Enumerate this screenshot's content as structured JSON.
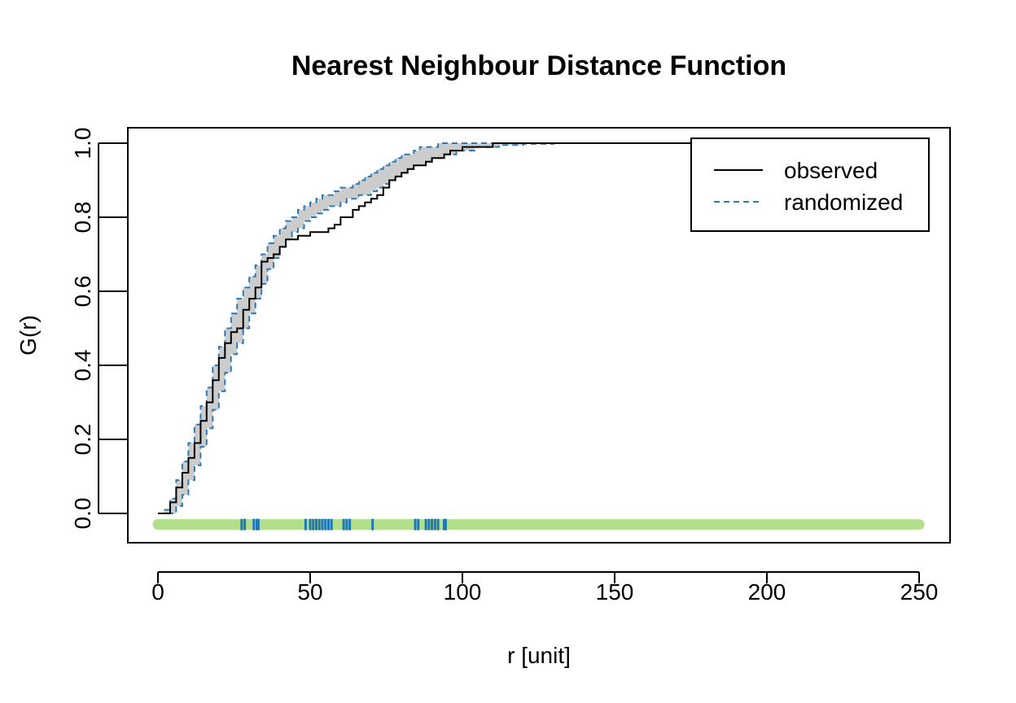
{
  "chart_data": {
    "type": "line",
    "title": "Nearest Neighbour Distance Function",
    "xlabel": "r [unit]",
    "ylabel": "G(r)",
    "xlim": [
      0,
      250
    ],
    "ylim": [
      -0.03,
      1.0
    ],
    "x_ticks": [
      "0",
      "50",
      "100",
      "150",
      "200",
      "250"
    ],
    "y_ticks": [
      "0.0",
      "0.2",
      "0.4",
      "0.6",
      "0.8",
      "1.0"
    ],
    "grid": false,
    "legend": {
      "position": "top-right",
      "entries": [
        {
          "label": "observed",
          "style": "solid",
          "color": "#000000"
        },
        {
          "label": "randomized",
          "style": "dashed",
          "color": "#2c7bb6"
        }
      ]
    },
    "colors": {
      "observed": "#000000",
      "envelope_line": "#2c7bb6",
      "envelope_fill": "#cccccc",
      "rug_background": "#b2df8a",
      "rug_marks": "#1f78b4"
    },
    "series": [
      {
        "name": "observed",
        "x": [
          0,
          3,
          4,
          6,
          8,
          10,
          12,
          14,
          16,
          18,
          20,
          22,
          24,
          26,
          28,
          30,
          32,
          34,
          36,
          38,
          40,
          42,
          44,
          46,
          48,
          50,
          52,
          54,
          56,
          58,
          60,
          62,
          64,
          66,
          68,
          70,
          72,
          74,
          76,
          78,
          80,
          82,
          84,
          86,
          88,
          90,
          92,
          94,
          96,
          98,
          100,
          102,
          104,
          106,
          108,
          110,
          250
        ],
        "y": [
          0,
          0,
          0.03,
          0.07,
          0.11,
          0.15,
          0.19,
          0.25,
          0.3,
          0.36,
          0.42,
          0.46,
          0.49,
          0.5,
          0.55,
          0.58,
          0.61,
          0.68,
          0.69,
          0.7,
          0.72,
          0.74,
          0.74,
          0.75,
          0.75,
          0.76,
          0.76,
          0.76,
          0.77,
          0.78,
          0.8,
          0.8,
          0.82,
          0.83,
          0.84,
          0.85,
          0.86,
          0.88,
          0.9,
          0.91,
          0.92,
          0.93,
          0.94,
          0.94,
          0.95,
          0.96,
          0.96,
          0.97,
          0.98,
          0.98,
          0.99,
          0.99,
          0.99,
          0.99,
          0.99,
          1.0,
          1.0
        ]
      },
      {
        "name": "randomized",
        "role": "upper envelope",
        "x": [
          0,
          2,
          4,
          6,
          8,
          10,
          12,
          14,
          16,
          18,
          20,
          22,
          24,
          26,
          28,
          30,
          32,
          34,
          36,
          38,
          40,
          42,
          44,
          46,
          48,
          50,
          52,
          54,
          56,
          58,
          60,
          62,
          64,
          66,
          68,
          70,
          72,
          74,
          76,
          78,
          80,
          82,
          84,
          86,
          88,
          90,
          92,
          94,
          96,
          98,
          100,
          104,
          110,
          250
        ],
        "y": [
          0,
          0.01,
          0.04,
          0.09,
          0.14,
          0.19,
          0.24,
          0.29,
          0.34,
          0.4,
          0.45,
          0.5,
          0.54,
          0.58,
          0.61,
          0.64,
          0.67,
          0.7,
          0.73,
          0.75,
          0.77,
          0.79,
          0.8,
          0.82,
          0.83,
          0.84,
          0.85,
          0.86,
          0.86,
          0.87,
          0.88,
          0.88,
          0.89,
          0.9,
          0.91,
          0.92,
          0.93,
          0.94,
          0.95,
          0.96,
          0.97,
          0.97,
          0.98,
          0.99,
          0.99,
          0.99,
          1.0,
          1.0,
          1.0,
          1.0,
          1.0,
          1.0,
          1.0,
          1.0
        ]
      },
      {
        "name": "randomized",
        "role": "lower envelope",
        "x": [
          0,
          4,
          6,
          8,
          10,
          12,
          14,
          16,
          18,
          20,
          22,
          24,
          26,
          28,
          30,
          32,
          34,
          36,
          38,
          40,
          42,
          44,
          46,
          48,
          50,
          52,
          54,
          56,
          58,
          60,
          62,
          64,
          66,
          68,
          70,
          72,
          74,
          76,
          78,
          80,
          82,
          84,
          86,
          88,
          90,
          92,
          94,
          96,
          98,
          100,
          104,
          108,
          112,
          120,
          130,
          250
        ],
        "y": [
          0,
          0,
          0.02,
          0.05,
          0.09,
          0.13,
          0.18,
          0.23,
          0.28,
          0.33,
          0.38,
          0.43,
          0.46,
          0.5,
          0.54,
          0.58,
          0.62,
          0.66,
          0.69,
          0.72,
          0.74,
          0.76,
          0.77,
          0.79,
          0.8,
          0.81,
          0.82,
          0.83,
          0.83,
          0.84,
          0.85,
          0.85,
          0.86,
          0.86,
          0.87,
          0.88,
          0.89,
          0.9,
          0.91,
          0.92,
          0.93,
          0.94,
          0.94,
          0.95,
          0.96,
          0.96,
          0.97,
          0.97,
          0.98,
          0.98,
          0.99,
          0.99,
          0.995,
          0.998,
          1.0,
          1.0
        ]
      }
    ],
    "rug": {
      "y": -0.03,
      "background_range": [
        0,
        250
      ],
      "marks": [
        27.5,
        28.5,
        31.5,
        32.5,
        33,
        48.5,
        50,
        51,
        52,
        53,
        54,
        55,
        56,
        57,
        61,
        62,
        63,
        70.5,
        84.5,
        85.5,
        88,
        89,
        90,
        91,
        92,
        94,
        94.5
      ]
    }
  }
}
